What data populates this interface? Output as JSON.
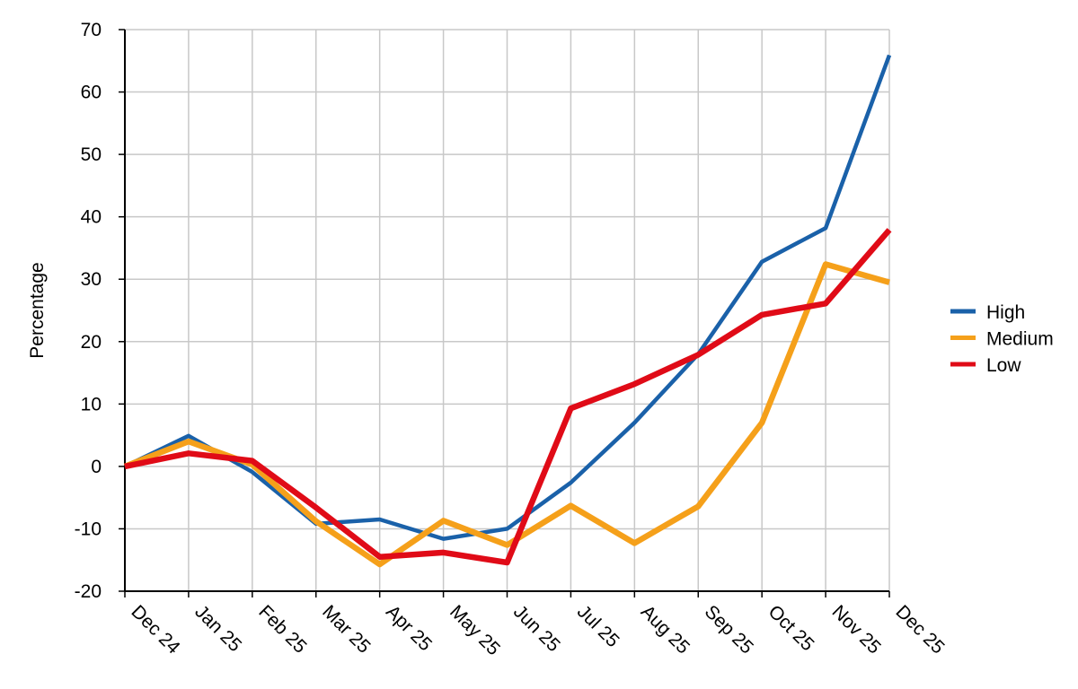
{
  "chart_data": {
    "type": "line",
    "title": "",
    "xlabel": "",
    "ylabel": "Percentage",
    "ylim": [
      -20,
      70
    ],
    "yticks": [
      70,
      60,
      50,
      40,
      30,
      20,
      10,
      0,
      -10,
      -20
    ],
    "grid": true,
    "legend_position": "right",
    "categories": [
      "Dec 24",
      "Jan 25",
      "Feb 25",
      "Mar 25",
      "Apr 25",
      "May 25",
      "Jun 25",
      "Jul 25",
      "Aug 25",
      "Sep 25",
      "Oct 25",
      "Nov 25",
      "Dec 25"
    ],
    "series": [
      {
        "name": "High",
        "color": "#1a61a9",
        "values": [
          0,
          4.9,
          -0.9,
          -9.2,
          -8.5,
          -11.6,
          -10.0,
          -2.6,
          7.0,
          18.0,
          32.8,
          38.2,
          65.9
        ]
      },
      {
        "name": "Medium",
        "color": "#f5a01a",
        "values": [
          0,
          4.0,
          0.3,
          -8.8,
          -15.7,
          -8.7,
          -12.6,
          -6.3,
          -12.3,
          -6.4,
          7.0,
          32.4,
          29.5
        ]
      },
      {
        "name": "Low",
        "color": "#e00b17",
        "values": [
          0,
          2.1,
          0.9,
          -6.6,
          -14.5,
          -13.8,
          -15.4,
          9.3,
          13.2,
          17.9,
          24.3,
          26.1,
          37.9
        ]
      }
    ]
  }
}
